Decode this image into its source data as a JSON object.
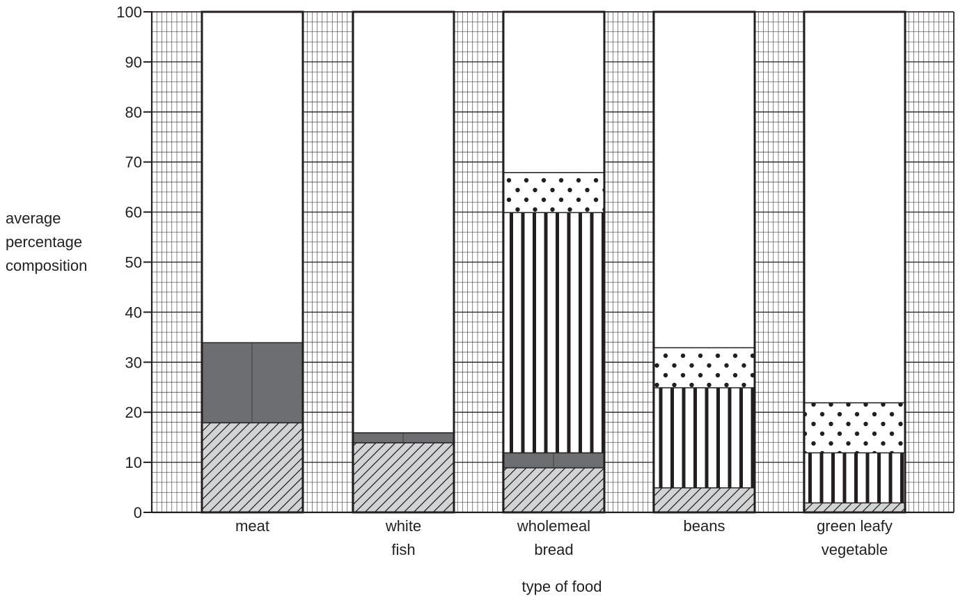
{
  "chart_data": {
    "type": "bar",
    "stacked": true,
    "categories": [
      [
        "meat"
      ],
      [
        "white",
        "fish"
      ],
      [
        "wholemeal",
        "bread"
      ],
      [
        "beans"
      ],
      [
        "green leafy",
        "vegetable"
      ]
    ],
    "ylabel": [
      "average",
      "percentage",
      "composition"
    ],
    "xlabel": "type of food",
    "ylim": [
      0,
      100
    ],
    "yticks": [
      0,
      10,
      20,
      30,
      40,
      50,
      60,
      70,
      80,
      90,
      100
    ],
    "grid": true,
    "segments": [
      [
        {
          "pattern": "hatch",
          "from": 0,
          "to": 18
        },
        {
          "pattern": "dark",
          "from": 18,
          "to": 34
        },
        {
          "pattern": "white",
          "from": 34,
          "to": 100
        }
      ],
      [
        {
          "pattern": "hatch",
          "from": 0,
          "to": 14
        },
        {
          "pattern": "dark",
          "from": 14,
          "to": 16
        },
        {
          "pattern": "white",
          "from": 16,
          "to": 100
        }
      ],
      [
        {
          "pattern": "hatch",
          "from": 0,
          "to": 9
        },
        {
          "pattern": "dark",
          "from": 9,
          "to": 12
        },
        {
          "pattern": "stripes",
          "from": 12,
          "to": 60
        },
        {
          "pattern": "dots",
          "from": 60,
          "to": 68
        },
        {
          "pattern": "white",
          "from": 68,
          "to": 100
        }
      ],
      [
        {
          "pattern": "hatch",
          "from": 0,
          "to": 5
        },
        {
          "pattern": "stripes",
          "from": 5,
          "to": 25
        },
        {
          "pattern": "dots",
          "from": 25,
          "to": 33
        },
        {
          "pattern": "white",
          "from": 33,
          "to": 100
        }
      ],
      [
        {
          "pattern": "hatch",
          "from": 0,
          "to": 2
        },
        {
          "pattern": "stripes",
          "from": 2,
          "to": 12
        },
        {
          "pattern": "dots",
          "from": 12,
          "to": 22
        },
        {
          "pattern": "white",
          "from": 22,
          "to": 100
        }
      ]
    ],
    "colors": {
      "ink": "#231f20",
      "dark": "#6d6e71",
      "hatch_bg": "#d1d3d4",
      "grid": "#231f20"
    }
  }
}
